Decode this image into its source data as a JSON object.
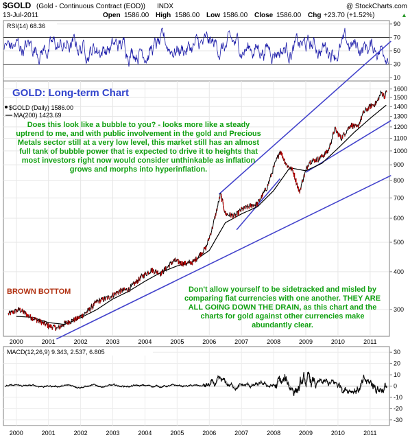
{
  "header": {
    "symbol": "$GOLD",
    "description": "(Gold - Continuous Contract (EOD))",
    "exchange": "INDX",
    "watermark": "@ StockCharts.com",
    "date": "13-Jul-2011",
    "open_label": "Open",
    "open": "1586.00",
    "high_label": "High",
    "high": "1586.00",
    "low_label": "Low",
    "low": "1586.00",
    "close_label": "Close",
    "close": "1586.00",
    "chg_label": "Chg",
    "chg": "+23.70 (+1.52%)",
    "chg_marker": "▲"
  },
  "rsi_panel": {
    "label": "RSI(14) 68.36",
    "ticks": [
      "90",
      "70",
      "50",
      "30",
      "10"
    ],
    "tick_values": [
      90,
      70,
      50,
      30,
      10
    ],
    "overbought": 70,
    "oversold": 30,
    "ylim": [
      10,
      90
    ]
  },
  "price_panel": {
    "title": "GOLD: Long-term Chart",
    "legend_price": "$GOLD (Daily) 1586.00",
    "legend_ma": "MA(200) 1423.69",
    "ticks": [
      "1600",
      "1500",
      "1400",
      "1300",
      "1200",
      "1100",
      "1000",
      "900",
      "800",
      "700",
      "600",
      "500",
      "400",
      "300"
    ],
    "tick_values": [
      1600,
      1500,
      1400,
      1300,
      1200,
      1100,
      1000,
      900,
      800,
      700,
      600,
      500,
      400,
      300
    ],
    "ylim": [
      245,
      1700
    ],
    "scale": "log",
    "annotation_1": "Does this look like a bubble to you? - looks more like a steady uptrend to me, and with public involvement in the gold and Precious Metals sector still at a very low level, this market still has an almost full tank of bubble power that is expected to drive it to heights that most investors right now would consider unthinkable as inflation grows and morphs into hyperinflation.",
    "brown_bottom": "BROWN BOTTOM",
    "annotation_2": "Don't allow yourself to be sidetracked and misled by comparing fiat currencies with one another. THEY ARE ALL GOING DOWN THE DRAIN, as this chart and the charts for gold against other currencies make abundantly clear.",
    "colors": {
      "title": "#3344cc",
      "annotation": "#11a011",
      "brown_bottom": "#b03010",
      "trendline": "#4444cc",
      "ma": "#000000",
      "price": "#000000",
      "price_down": "#cc0000"
    }
  },
  "x_axis": {
    "labels": [
      "2000",
      "2001",
      "2002",
      "2003",
      "2004",
      "2005",
      "2006",
      "2007",
      "2008",
      "2009",
      "2010",
      "2011"
    ]
  },
  "macd_panel": {
    "label": "MACD(12,26,9) 9.343, 2.537, 6.805",
    "ticks": [
      "30",
      "20",
      "10",
      "0",
      "-10",
      "-20",
      "-30"
    ],
    "tick_values": [
      30,
      20,
      10,
      0,
      -10,
      -20,
      -30
    ],
    "ylim": [
      -35,
      35
    ]
  },
  "chart_data": {
    "type": "line",
    "title": "GOLD: Long-term Chart",
    "scale": "log",
    "ylim": [
      245,
      1700
    ],
    "series": [
      {
        "name": "$GOLD (Daily)",
        "points": [
          [
            "1999.75",
            290
          ],
          [
            "2000.1",
            300
          ],
          [
            "2000.4",
            285
          ],
          [
            "2000.7",
            275
          ],
          [
            "2001.0",
            265
          ],
          [
            "2001.3",
            260
          ],
          [
            "2001.5",
            270
          ],
          [
            "2001.9",
            280
          ],
          [
            "2002.2",
            295
          ],
          [
            "2002.5",
            318
          ],
          [
            "2002.9",
            330
          ],
          [
            "2003.2",
            345
          ],
          [
            "2003.5",
            350
          ],
          [
            "2003.9",
            385
          ],
          [
            "2004.2",
            405
          ],
          [
            "2004.5",
            395
          ],
          [
            "2004.9",
            435
          ],
          [
            "2005.2",
            425
          ],
          [
            "2005.5",
            430
          ],
          [
            "2005.9",
            480
          ],
          [
            "2006.1",
            560
          ],
          [
            "2006.35",
            720
          ],
          [
            "2006.5",
            620
          ],
          [
            "2006.8",
            610
          ],
          [
            "2007.0",
            640
          ],
          [
            "2007.3",
            660
          ],
          [
            "2007.5",
            670
          ],
          [
            "2007.8",
            760
          ],
          [
            "2008.0",
            880
          ],
          [
            "2008.2",
            1000
          ],
          [
            "2008.4",
            900
          ],
          [
            "2008.6",
            860
          ],
          [
            "2008.8",
            730
          ],
          [
            "2008.9",
            800
          ],
          [
            "2009.1",
            920
          ],
          [
            "2009.4",
            940
          ],
          [
            "2009.7",
            1000
          ],
          [
            "2009.9",
            1180
          ],
          [
            "2010.1",
            1100
          ],
          [
            "2010.4",
            1220
          ],
          [
            "2010.6",
            1190
          ],
          [
            "2010.8",
            1340
          ],
          [
            "2011.0",
            1400
          ],
          [
            "2011.2",
            1440
          ],
          [
            "2011.35",
            1560
          ],
          [
            "2011.45",
            1510
          ],
          [
            "2011.53",
            1586
          ]
        ]
      },
      {
        "name": "MA(200)",
        "points": [
          [
            "2000.0",
            285
          ],
          [
            "2000.5",
            283
          ],
          [
            "2001.0",
            272
          ],
          [
            "2001.5",
            268
          ],
          [
            "2002.0",
            282
          ],
          [
            "2002.5",
            300
          ],
          [
            "2003.0",
            325
          ],
          [
            "2003.5",
            345
          ],
          [
            "2004.0",
            372
          ],
          [
            "2004.5",
            398
          ],
          [
            "2005.0",
            418
          ],
          [
            "2005.5",
            432
          ],
          [
            "2006.0",
            470
          ],
          [
            "2006.5",
            580
          ],
          [
            "2007.0",
            620
          ],
          [
            "2007.5",
            655
          ],
          [
            "2008.0",
            740
          ],
          [
            "2008.5",
            880
          ],
          [
            "2009.0",
            860
          ],
          [
            "2009.5",
            910
          ],
          [
            "2010.0",
            1020
          ],
          [
            "2010.5",
            1150
          ],
          [
            "2011.0",
            1280
          ],
          [
            "2011.53",
            1424
          ]
        ]
      }
    ],
    "trendlines": [
      {
        "from": [
          "2001.25",
          240
        ],
        "to": [
          "2011.65",
          830
        ]
      },
      {
        "from": [
          "2006.3",
          720
        ],
        "to": [
          "2011.65",
          2300
        ]
      },
      {
        "from": [
          "2006.85",
          550
        ],
        "to": [
          "2008.2",
          810
        ]
      },
      {
        "from": [
          "2009.0",
          850
        ],
        "to": [
          "2011.65",
          1260
        ]
      }
    ]
  }
}
